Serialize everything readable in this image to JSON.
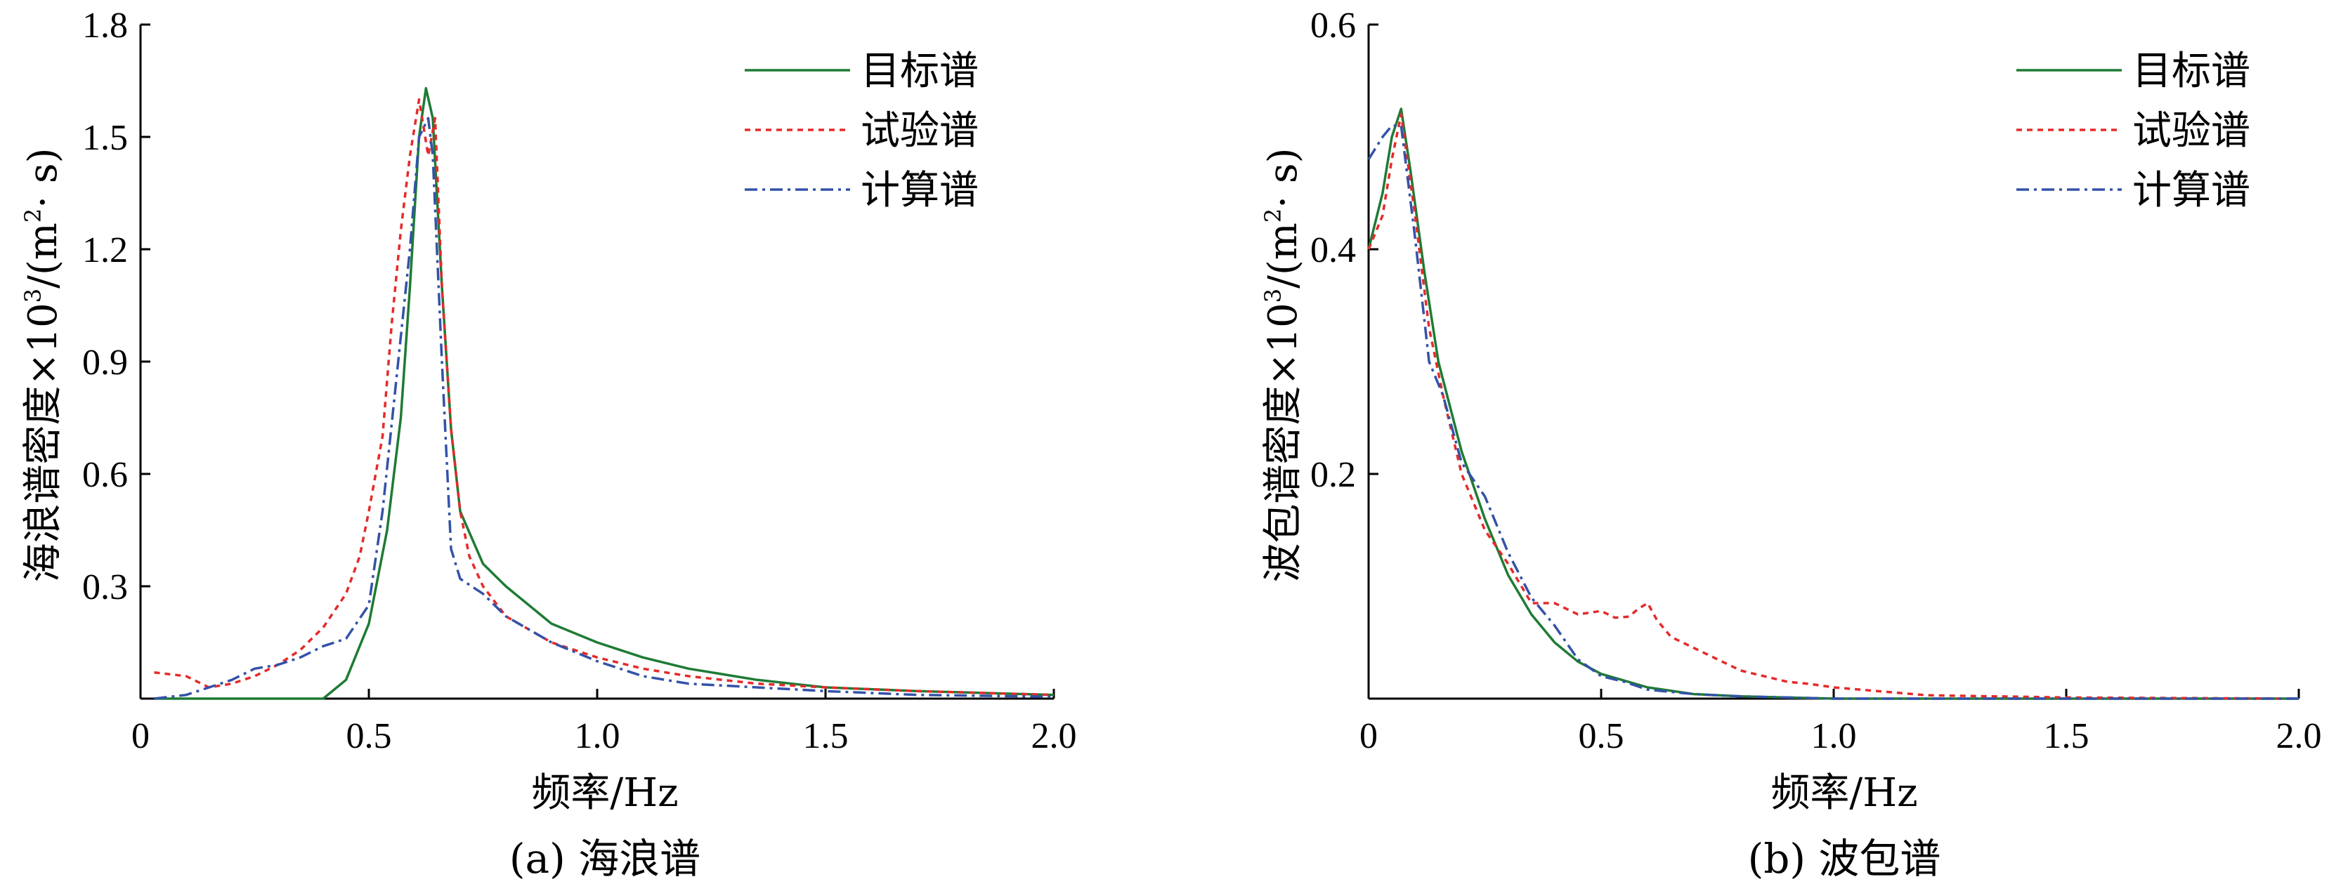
{
  "chart_data": [
    {
      "type": "line",
      "caption": "(a)  海浪谱",
      "xlabel": "频率/Hz",
      "ylabel": {
        "main": "海浪谱密度×10",
        "exp": "3",
        "unit_open": "/(m",
        "unit_exp": "2",
        "unit_close": "· s)"
      },
      "xlim": [
        0,
        2.0
      ],
      "ylim": [
        0,
        1.8
      ],
      "xticks": [
        0,
        0.5,
        1.0,
        1.5,
        2.0
      ],
      "xtick_labels": [
        "0",
        "0.5",
        "1.0",
        "1.5",
        "2.0"
      ],
      "yticks": [
        0.3,
        0.6,
        0.9,
        1.2,
        1.5,
        1.8
      ],
      "ytick_labels": [
        "0.3",
        "0.6",
        "0.9",
        "1.2",
        "1.5",
        "1.8"
      ],
      "legend_position": "top-right",
      "series": [
        {
          "name": "目标谱",
          "color": "#1e7b34",
          "dash": "solid",
          "x": [
            0.03,
            0.4,
            0.45,
            0.5,
            0.54,
            0.57,
            0.59,
            0.61,
            0.625,
            0.64,
            0.66,
            0.68,
            0.7,
            0.75,
            0.8,
            0.9,
            1.0,
            1.1,
            1.2,
            1.35,
            1.5,
            1.7,
            2.0
          ],
          "y": [
            0,
            0,
            0.05,
            0.2,
            0.45,
            0.75,
            1.1,
            1.5,
            1.63,
            1.55,
            1.1,
            0.72,
            0.5,
            0.36,
            0.3,
            0.2,
            0.15,
            0.11,
            0.08,
            0.05,
            0.03,
            0.02,
            0.01
          ]
        },
        {
          "name": "试验谱",
          "color": "#e52a2a",
          "dash": "8,7",
          "x": [
            0.03,
            0.1,
            0.15,
            0.2,
            0.25,
            0.3,
            0.35,
            0.4,
            0.45,
            0.48,
            0.5,
            0.53,
            0.55,
            0.57,
            0.59,
            0.61,
            0.63,
            0.645,
            0.66,
            0.68,
            0.7,
            0.72,
            0.75,
            0.8,
            0.9,
            1.0,
            1.1,
            1.2,
            1.35,
            1.5,
            1.7,
            2.0
          ],
          "y": [
            0.07,
            0.06,
            0.03,
            0.04,
            0.06,
            0.09,
            0.13,
            0.19,
            0.28,
            0.38,
            0.5,
            0.7,
            1.0,
            1.25,
            1.45,
            1.6,
            1.45,
            1.55,
            1.1,
            0.72,
            0.5,
            0.38,
            0.3,
            0.22,
            0.15,
            0.11,
            0.08,
            0.06,
            0.04,
            0.03,
            0.02,
            0.01
          ]
        },
        {
          "name": "计算谱",
          "color": "#3352a8",
          "dash": "18,7,4,7",
          "x": [
            0.03,
            0.1,
            0.15,
            0.2,
            0.25,
            0.3,
            0.35,
            0.4,
            0.45,
            0.5,
            0.53,
            0.56,
            0.59,
            0.61,
            0.63,
            0.64,
            0.66,
            0.68,
            0.7,
            0.75,
            0.8,
            0.9,
            1.0,
            1.1,
            1.2,
            1.35,
            1.5,
            1.7,
            2.0
          ],
          "y": [
            0,
            0.01,
            0.03,
            0.05,
            0.08,
            0.09,
            0.11,
            0.14,
            0.16,
            0.25,
            0.5,
            0.85,
            1.2,
            1.5,
            1.55,
            1.45,
            0.9,
            0.4,
            0.32,
            0.28,
            0.22,
            0.15,
            0.1,
            0.06,
            0.04,
            0.03,
            0.02,
            0.01,
            0.005
          ]
        }
      ]
    },
    {
      "type": "line",
      "caption": "(b)  波包谱",
      "xlabel": "频率/Hz",
      "ylabel": {
        "main": "波包谱密度×10",
        "exp": "3",
        "unit_open": "/(m",
        "unit_exp": "2",
        "unit_close": "· s)"
      },
      "xlim": [
        0,
        2.0
      ],
      "ylim": [
        0,
        0.6
      ],
      "xticks": [
        0,
        0.5,
        1.0,
        1.5,
        2.0
      ],
      "xtick_labels": [
        "0",
        "0.5",
        "1.0",
        "1.5",
        "2.0"
      ],
      "yticks": [
        0.2,
        0.4,
        0.6
      ],
      "ytick_labels": [
        "0.2",
        "0.4",
        "0.6"
      ],
      "legend_position": "top-right",
      "series": [
        {
          "name": "目标谱",
          "color": "#1e7b34",
          "dash": "solid",
          "x": [
            0.0,
            0.03,
            0.05,
            0.07,
            0.09,
            0.12,
            0.15,
            0.2,
            0.25,
            0.3,
            0.35,
            0.4,
            0.45,
            0.5,
            0.6,
            0.7,
            0.8,
            0.9,
            1.0,
            1.2,
            1.5,
            2.0
          ],
          "y": [
            0.4,
            0.45,
            0.5,
            0.525,
            0.47,
            0.38,
            0.3,
            0.22,
            0.16,
            0.11,
            0.075,
            0.05,
            0.033,
            0.022,
            0.01,
            0.004,
            0.002,
            0.001,
            0,
            0,
            0,
            0
          ]
        },
        {
          "name": "试验谱",
          "color": "#e52a2a",
          "dash": "8,7",
          "x": [
            0.0,
            0.03,
            0.05,
            0.07,
            0.1,
            0.13,
            0.16,
            0.2,
            0.25,
            0.3,
            0.35,
            0.4,
            0.45,
            0.5,
            0.53,
            0.56,
            0.58,
            0.6,
            0.62,
            0.65,
            0.7,
            0.75,
            0.8,
            0.85,
            0.9,
            0.95,
            1.0,
            1.2,
            1.5,
            2.0
          ],
          "y": [
            0.4,
            0.43,
            0.48,
            0.52,
            0.43,
            0.33,
            0.27,
            0.2,
            0.15,
            0.12,
            0.085,
            0.085,
            0.075,
            0.078,
            0.072,
            0.073,
            0.08,
            0.085,
            0.07,
            0.055,
            0.045,
            0.035,
            0.025,
            0.02,
            0.015,
            0.013,
            0.01,
            0.003,
            0.001,
            0
          ]
        },
        {
          "name": "计算谱",
          "color": "#3352a8",
          "dash": "18,7,4,7",
          "x": [
            0.0,
            0.03,
            0.05,
            0.07,
            0.1,
            0.13,
            0.16,
            0.2,
            0.25,
            0.3,
            0.35,
            0.4,
            0.45,
            0.5,
            0.55,
            0.6,
            0.7,
            0.8,
            0.9,
            1.0,
            1.2,
            1.5,
            2.0
          ],
          "y": [
            0.48,
            0.5,
            0.51,
            0.51,
            0.41,
            0.3,
            0.27,
            0.21,
            0.18,
            0.13,
            0.09,
            0.065,
            0.035,
            0.02,
            0.015,
            0.008,
            0.004,
            0.002,
            0.001,
            0,
            0,
            0,
            0
          ]
        }
      ]
    }
  ]
}
